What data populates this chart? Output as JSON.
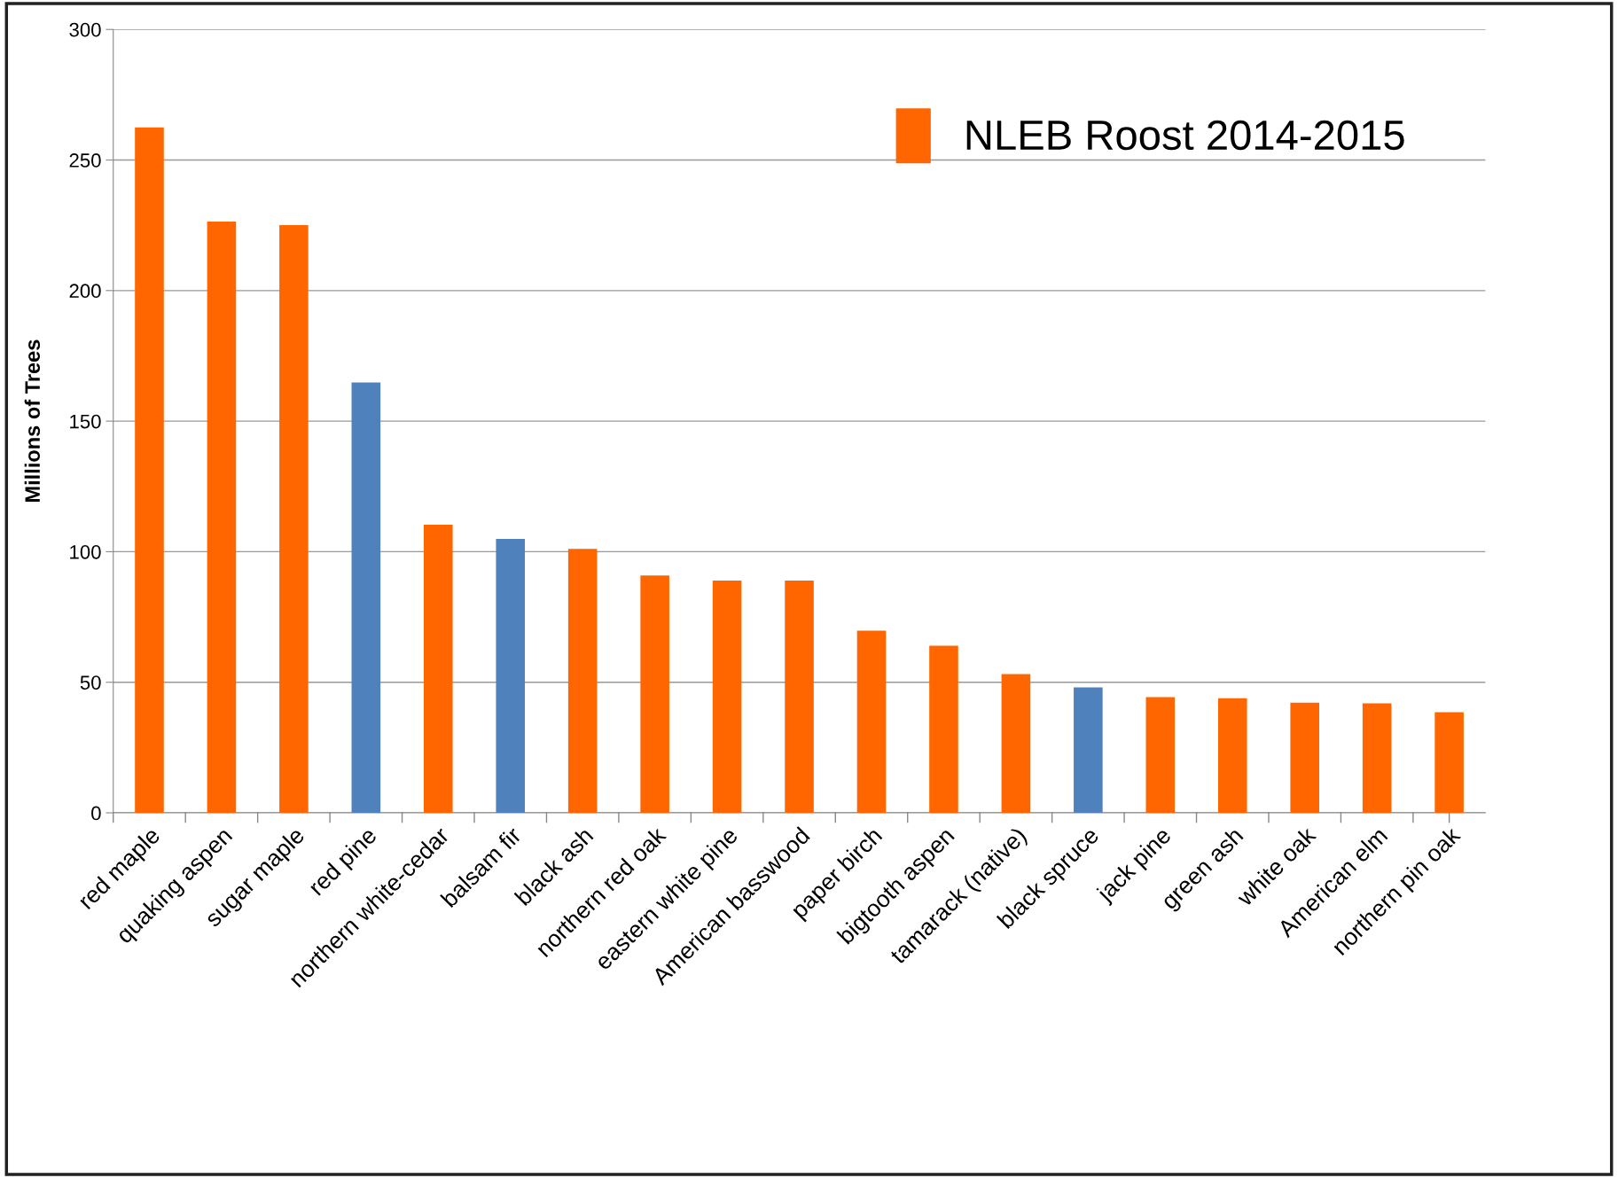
{
  "chart_data": {
    "type": "bar",
    "ylabel": "Millions of Trees",
    "categories": [
      "red maple",
      "quaking aspen",
      "sugar maple",
      "red pine",
      "northern white-cedar",
      "balsam fir",
      "black ash",
      "northern red oak",
      "eastern white pine",
      "American basswood",
      "paper birch",
      "bigtooth aspen",
      "tamarack (native)",
      "black spruce",
      "jack pine",
      "green ash",
      "white oak",
      "American elm",
      "northern pin oak"
    ],
    "series": [
      {
        "name": "NLEB Roost 2014-2015",
        "color": "#ff6600",
        "colors": [
          "#ff6600",
          "#ff6600",
          "#ff6600",
          "#4f81bd",
          "#ff6600",
          "#4f81bd",
          "#ff6600",
          "#ff6600",
          "#ff6600",
          "#ff6600",
          "#ff6600",
          "#ff6600",
          "#ff6600",
          "#4f81bd",
          "#ff6600",
          "#ff6600",
          "#ff6600",
          "#ff6600",
          "#ff6600"
        ],
        "values": [
          262.5,
          226.4,
          225.1,
          164.8,
          110.3,
          104.9,
          101.1,
          90.9,
          88.9,
          88.9,
          69.8,
          64.0,
          53.1,
          48.0,
          44.3,
          43.9,
          42.2,
          41.9,
          38.5
        ]
      }
    ],
    "ylim": [
      0,
      300
    ],
    "yticks": [
      0,
      50,
      100,
      150,
      200,
      250,
      300
    ],
    "grid": "y",
    "legend": "top right"
  }
}
